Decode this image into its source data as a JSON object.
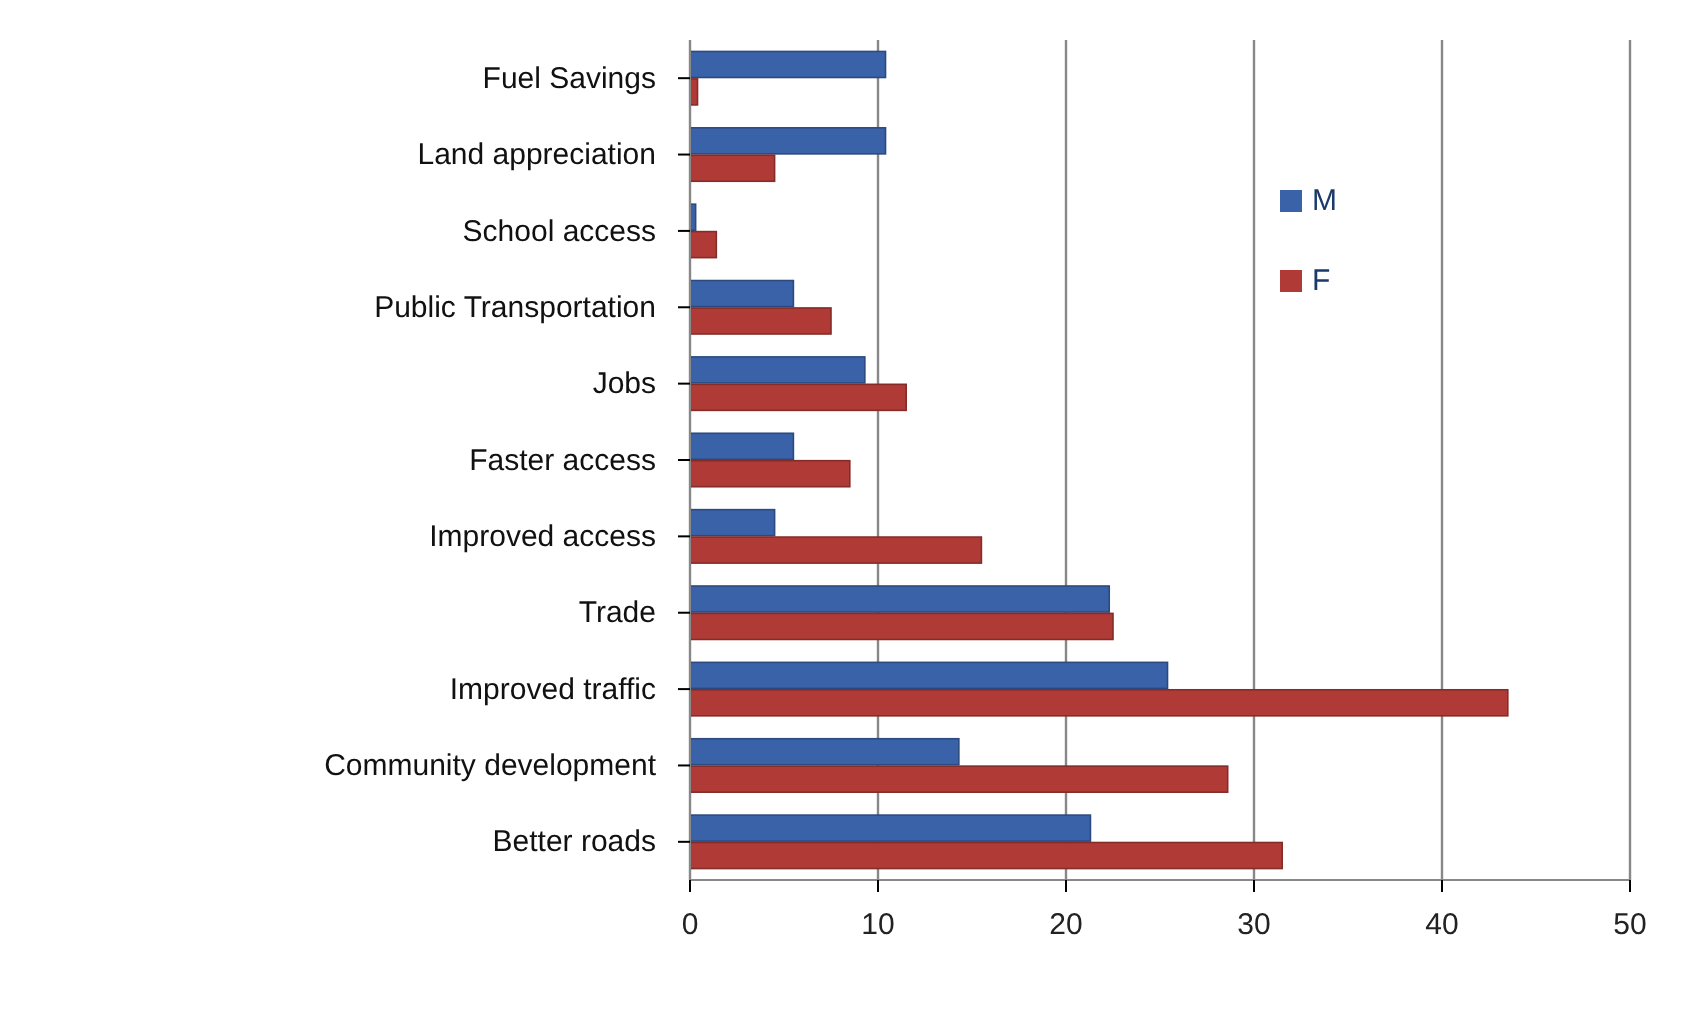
{
  "chart_data": {
    "type": "bar",
    "orientation": "horizontal",
    "categories": [
      "Fuel Savings",
      "Land appreciation",
      "School access",
      "Public Transportation",
      "Jobs",
      "Faster access",
      "Improved access",
      "Trade",
      "Improved traffic",
      "Community development",
      "Better roads"
    ],
    "series": [
      {
        "name": "M",
        "color": "#3a62a8",
        "values": [
          10.4,
          10.4,
          0.3,
          5.5,
          9.3,
          5.5,
          4.5,
          22.3,
          25.4,
          14.3,
          21.3
        ]
      },
      {
        "name": "F",
        "color": "#b03a36",
        "values": [
          0.4,
          4.5,
          1.4,
          7.5,
          11.5,
          8.5,
          15.5,
          22.5,
          43.5,
          28.6,
          31.5
        ]
      }
    ],
    "xlim": [
      0,
      50
    ],
    "xticks": [
      0,
      10,
      20,
      30,
      40,
      50
    ],
    "grid": "x",
    "legend": "right"
  }
}
